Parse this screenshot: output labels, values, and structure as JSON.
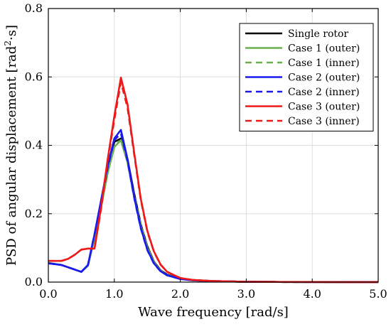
{
  "chart_data": {
    "type": "line",
    "xlabel": "Wave frequency [rad/s]",
    "ylabel_main": "PSD of angular displacement [rad",
    "ylabel_sup": "2",
    "ylabel_tail": "·s]",
    "xlim": [
      0,
      5
    ],
    "ylim": [
      0,
      0.8
    ],
    "xticks": [
      0,
      1,
      2,
      3,
      4,
      5
    ],
    "xtick_labels": [
      "0.0",
      "1.0",
      "2.0",
      "3.0",
      "4.0",
      "5.0"
    ],
    "yticks": [
      0,
      0.2,
      0.4,
      0.6,
      0.8
    ],
    "ytick_labels": [
      "0.0",
      "0.2",
      "0.4",
      "0.6",
      "0.8"
    ],
    "grid": true,
    "legend_position": "top-right",
    "series": [
      {
        "name": "Single rotor",
        "color": "#000000",
        "dash": "solid",
        "x": [
          0,
          0.2,
          0.5,
          0.6,
          0.7,
          0.8,
          0.9,
          1.0,
          1.1,
          1.2,
          1.3,
          1.4,
          1.5,
          1.6,
          1.7,
          1.8,
          2.0,
          2.2,
          2.5,
          3.0,
          3.5,
          4.0,
          4.5,
          5.0
        ],
        "y": [
          0.056,
          0.05,
          0.03,
          0.048,
          0.13,
          0.22,
          0.33,
          0.41,
          0.42,
          0.36,
          0.26,
          0.17,
          0.105,
          0.06,
          0.035,
          0.022,
          0.01,
          0.006,
          0.003,
          0.001,
          0.0005,
          0.0003,
          0.0002,
          0.0001
        ]
      },
      {
        "name": "Case 1 (outer)",
        "color": "#6ab04c",
        "dash": "solid",
        "x": [
          0,
          0.2,
          0.5,
          0.6,
          0.7,
          0.8,
          0.9,
          1.0,
          1.1,
          1.2,
          1.3,
          1.4,
          1.5,
          1.6,
          1.7,
          1.8,
          2.0,
          2.2,
          2.5,
          3.0,
          3.5,
          4.0,
          4.5,
          5.0
        ],
        "y": [
          0.056,
          0.05,
          0.03,
          0.048,
          0.13,
          0.22,
          0.32,
          0.395,
          0.415,
          0.35,
          0.25,
          0.165,
          0.1,
          0.058,
          0.033,
          0.02,
          0.009,
          0.005,
          0.003,
          0.001,
          0.0005,
          0.0003,
          0.0002,
          0.0001
        ]
      },
      {
        "name": "Case 1 (inner)",
        "color": "#6ab04c",
        "dash": "dashed",
        "x": [
          0,
          0.2,
          0.5,
          0.6,
          0.7,
          0.8,
          0.9,
          1.0,
          1.1,
          1.2,
          1.3,
          1.4,
          1.5,
          1.6,
          1.7,
          1.8,
          2.0,
          2.2,
          2.5,
          3.0,
          3.5,
          4.0,
          4.5,
          5.0
        ],
        "y": [
          0.056,
          0.05,
          0.03,
          0.048,
          0.13,
          0.22,
          0.32,
          0.4,
          0.415,
          0.355,
          0.255,
          0.168,
          0.102,
          0.058,
          0.034,
          0.021,
          0.009,
          0.005,
          0.003,
          0.001,
          0.0005,
          0.0003,
          0.0002,
          0.0001
        ]
      },
      {
        "name": "Case 2 (outer)",
        "color": "#1a1aee",
        "dash": "solid",
        "x": [
          0,
          0.2,
          0.5,
          0.6,
          0.7,
          0.8,
          0.9,
          1.0,
          1.1,
          1.2,
          1.3,
          1.4,
          1.5,
          1.6,
          1.7,
          1.8,
          2.0,
          2.2,
          2.5,
          3.0,
          3.5,
          4.0,
          4.5,
          5.0
        ],
        "y": [
          0.055,
          0.05,
          0.03,
          0.05,
          0.14,
          0.24,
          0.34,
          0.42,
          0.445,
          0.36,
          0.25,
          0.16,
          0.095,
          0.055,
          0.032,
          0.02,
          0.009,
          0.005,
          0.003,
          0.001,
          0.0005,
          0.0003,
          0.0002,
          0.0001
        ]
      },
      {
        "name": "Case 2 (inner)",
        "color": "#1a1aee",
        "dash": "dashed",
        "x": [
          0,
          0.2,
          0.5,
          0.6,
          0.7,
          0.8,
          0.9,
          1.0,
          1.1,
          1.2,
          1.3,
          1.4,
          1.5,
          1.6,
          1.7,
          1.8,
          2.0,
          2.2,
          2.5,
          3.0,
          3.5,
          4.0,
          4.5,
          5.0
        ],
        "y": [
          0.055,
          0.05,
          0.03,
          0.05,
          0.14,
          0.235,
          0.335,
          0.415,
          0.435,
          0.355,
          0.248,
          0.158,
          0.094,
          0.054,
          0.032,
          0.02,
          0.009,
          0.005,
          0.003,
          0.001,
          0.0005,
          0.0003,
          0.0002,
          0.0001
        ]
      },
      {
        "name": "Case 3 (outer)",
        "color": "#ee1a1a",
        "dash": "solid",
        "x": [
          0,
          0.2,
          0.3,
          0.4,
          0.5,
          0.6,
          0.7,
          0.8,
          0.9,
          1.0,
          1.1,
          1.2,
          1.3,
          1.4,
          1.5,
          1.6,
          1.7,
          1.8,
          2.0,
          2.2,
          2.5,
          3.0,
          3.5,
          4.0,
          4.5,
          5.0
        ],
        "y": [
          0.062,
          0.062,
          0.068,
          0.08,
          0.095,
          0.098,
          0.098,
          0.22,
          0.36,
          0.485,
          0.598,
          0.52,
          0.38,
          0.245,
          0.15,
          0.09,
          0.052,
          0.03,
          0.012,
          0.006,
          0.003,
          0.001,
          0.0005,
          0.0003,
          0.0002,
          0.0001
        ]
      },
      {
        "name": "Case 3 (inner)",
        "color": "#ee1a1a",
        "dash": "dashed",
        "x": [
          0,
          0.2,
          0.3,
          0.4,
          0.5,
          0.6,
          0.7,
          0.8,
          0.9,
          1.0,
          1.1,
          1.2,
          1.3,
          1.4,
          1.5,
          1.6,
          1.7,
          1.8,
          2.0,
          2.2,
          2.5,
          3.0,
          3.5,
          4.0,
          4.5,
          5.0
        ],
        "y": [
          0.062,
          0.062,
          0.068,
          0.08,
          0.095,
          0.098,
          0.098,
          0.215,
          0.355,
          0.475,
          0.585,
          0.51,
          0.375,
          0.242,
          0.148,
          0.089,
          0.051,
          0.03,
          0.012,
          0.006,
          0.003,
          0.001,
          0.0005,
          0.0003,
          0.0002,
          0.0001
        ]
      }
    ]
  }
}
